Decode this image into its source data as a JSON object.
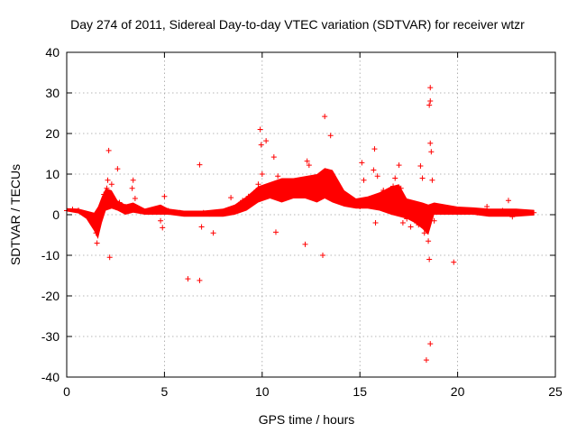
{
  "chart_data": {
    "type": "scatter",
    "title": "Day 274 of 2011, Sidereal Day-to-day VTEC variation (SDTVAR) for receiver wtzr",
    "xlabel": "GPS time / hours",
    "ylabel": "SDTVAR / TECUs",
    "xlim": [
      0,
      25
    ],
    "ylim": [
      -40,
      40
    ],
    "xticks": [
      0,
      5,
      10,
      15,
      20,
      25
    ],
    "yticks": [
      -40,
      -30,
      -20,
      -10,
      0,
      10,
      20,
      30,
      40
    ],
    "grid": true,
    "marker": "+",
    "series": [
      {
        "name": "SDTVAR",
        "color": "#ff0000",
        "points": [
          [
            0.0,
            1.0
          ],
          [
            0.3,
            1.3
          ],
          [
            0.6,
            1.1
          ],
          [
            0.9,
            0.3
          ],
          [
            1.2,
            -0.8
          ],
          [
            1.4,
            -1.5
          ],
          [
            1.5,
            -4.5
          ],
          [
            1.55,
            -7.0
          ],
          [
            1.7,
            1.0
          ],
          [
            1.9,
            5.0
          ],
          [
            2.05,
            6.5
          ],
          [
            2.1,
            8.5
          ],
          [
            2.15,
            15.8
          ],
          [
            2.2,
            -10.5
          ],
          [
            2.3,
            7.5
          ],
          [
            2.6,
            11.3
          ],
          [
            2.7,
            3.0
          ],
          [
            3.0,
            2.0
          ],
          [
            3.35,
            6.5
          ],
          [
            3.4,
            8.5
          ],
          [
            3.5,
            4.0
          ],
          [
            3.6,
            1.5
          ],
          [
            4.0,
            0.8
          ],
          [
            4.5,
            1.0
          ],
          [
            4.7,
            1.5
          ],
          [
            4.8,
            -1.5
          ],
          [
            4.9,
            -3.2
          ],
          [
            5.0,
            4.5
          ],
          [
            5.2,
            1.0
          ],
          [
            5.8,
            0.5
          ],
          [
            6.2,
            -15.8
          ],
          [
            6.8,
            -16.2
          ],
          [
            6.8,
            12.3
          ],
          [
            6.9,
            -3.0
          ],
          [
            7.0,
            0.5
          ],
          [
            7.3,
            0.2
          ],
          [
            7.5,
            -4.5
          ],
          [
            7.8,
            0.5
          ],
          [
            8.4,
            4.2
          ],
          [
            8.8,
            2.5
          ],
          [
            9.0,
            3.5
          ],
          [
            9.3,
            4.5
          ],
          [
            9.5,
            5.0
          ],
          [
            9.7,
            6.0
          ],
          [
            9.8,
            7.5
          ],
          [
            9.9,
            21.0
          ],
          [
            9.95,
            17.2
          ],
          [
            10.0,
            10.0
          ],
          [
            10.2,
            18.2
          ],
          [
            10.4,
            5.0
          ],
          [
            10.6,
            14.2
          ],
          [
            10.7,
            -4.3
          ],
          [
            10.8,
            9.5
          ],
          [
            11.0,
            8.0
          ],
          [
            11.2,
            7.0
          ],
          [
            11.5,
            7.5
          ],
          [
            11.7,
            6.5
          ],
          [
            12.0,
            7.0
          ],
          [
            12.2,
            -7.3
          ],
          [
            12.3,
            13.2
          ],
          [
            12.4,
            12.2
          ],
          [
            12.6,
            8.0
          ],
          [
            12.8,
            9.0
          ],
          [
            13.0,
            7.0
          ],
          [
            13.1,
            -10.0
          ],
          [
            13.2,
            24.2
          ],
          [
            13.3,
            10.5
          ],
          [
            13.5,
            19.5
          ],
          [
            13.6,
            8.0
          ],
          [
            14.0,
            4.5
          ],
          [
            14.5,
            3.0
          ],
          [
            15.0,
            2.0
          ],
          [
            15.1,
            12.8
          ],
          [
            15.2,
            8.5
          ],
          [
            15.5,
            4.0
          ],
          [
            15.7,
            11.0
          ],
          [
            15.75,
            16.2
          ],
          [
            15.8,
            -2.0
          ],
          [
            15.9,
            9.5
          ],
          [
            16.2,
            6.0
          ],
          [
            16.5,
            4.5
          ],
          [
            16.7,
            7.0
          ],
          [
            16.8,
            9.0
          ],
          [
            17.0,
            12.2
          ],
          [
            17.1,
            6.5
          ],
          [
            17.2,
            -2.0
          ],
          [
            17.4,
            -1.0
          ],
          [
            17.6,
            -3.0
          ],
          [
            17.8,
            -1.5
          ],
          [
            18.0,
            -2.5
          ],
          [
            18.1,
            12.0
          ],
          [
            18.2,
            9.0
          ],
          [
            18.3,
            -4.5
          ],
          [
            18.4,
            -35.8
          ],
          [
            18.5,
            -6.5
          ],
          [
            18.55,
            -11.0
          ],
          [
            18.6,
            31.3
          ],
          [
            18.6,
            28.0
          ],
          [
            18.55,
            27.0
          ],
          [
            18.6,
            17.6
          ],
          [
            18.65,
            15.5
          ],
          [
            18.7,
            8.5
          ],
          [
            18.8,
            -1.5
          ],
          [
            18.6,
            -31.8
          ],
          [
            19.0,
            1.2
          ],
          [
            19.5,
            1.0
          ],
          [
            19.8,
            -11.7
          ],
          [
            20.0,
            1.0
          ],
          [
            20.5,
            0.8
          ],
          [
            21.0,
            0.5
          ],
          [
            21.3,
            0.5
          ],
          [
            21.5,
            2.0
          ],
          [
            22.0,
            0.3
          ],
          [
            22.3,
            1.0
          ],
          [
            22.6,
            3.5
          ],
          [
            22.8,
            -0.5
          ],
          [
            23.0,
            0.5
          ],
          [
            23.5,
            0.5
          ],
          [
            23.9,
            0.5
          ]
        ],
        "dense_band": [
          [
            0.0,
            0.8,
            1.6
          ],
          [
            0.6,
            0.3,
            1.5
          ],
          [
            1.0,
            -1.0,
            1.0
          ],
          [
            1.4,
            -4.0,
            0.5
          ],
          [
            1.6,
            -6.0,
            2.0
          ],
          [
            1.8,
            -2.0,
            4.5
          ],
          [
            2.0,
            1.0,
            6.5
          ],
          [
            2.3,
            1.5,
            6.0
          ],
          [
            2.6,
            1.0,
            3.5
          ],
          [
            3.0,
            0.0,
            2.5
          ],
          [
            3.4,
            0.5,
            3.0
          ],
          [
            4.0,
            0.0,
            1.5
          ],
          [
            4.8,
            0.0,
            2.5
          ],
          [
            5.2,
            0.0,
            1.5
          ],
          [
            6.0,
            -0.5,
            1.0
          ],
          [
            7.0,
            -0.5,
            1.0
          ],
          [
            8.0,
            -0.5,
            1.5
          ],
          [
            8.6,
            0.0,
            2.5
          ],
          [
            9.2,
            1.0,
            4.5
          ],
          [
            9.8,
            3.0,
            7.0
          ],
          [
            10.4,
            4.0,
            8.0
          ],
          [
            11.0,
            3.0,
            9.0
          ],
          [
            11.6,
            4.0,
            9.0
          ],
          [
            12.2,
            4.0,
            9.5
          ],
          [
            12.8,
            3.0,
            10.0
          ],
          [
            13.2,
            4.0,
            11.5
          ],
          [
            13.6,
            3.0,
            11.0
          ],
          [
            14.2,
            2.0,
            6.0
          ],
          [
            14.8,
            1.5,
            4.0
          ],
          [
            15.4,
            1.5,
            4.5
          ],
          [
            16.0,
            1.0,
            5.5
          ],
          [
            16.6,
            0.0,
            7.0
          ],
          [
            17.0,
            -0.5,
            7.5
          ],
          [
            17.4,
            -1.0,
            4.0
          ],
          [
            17.8,
            -2.0,
            3.5
          ],
          [
            18.2,
            -3.5,
            3.0
          ],
          [
            18.5,
            -5.0,
            2.5
          ],
          [
            18.8,
            0.0,
            3.0
          ],
          [
            19.4,
            0.0,
            2.5
          ],
          [
            20.0,
            0.0,
            2.0
          ],
          [
            20.8,
            0.0,
            1.8
          ],
          [
            21.6,
            -0.5,
            1.5
          ],
          [
            22.4,
            -0.5,
            1.5
          ],
          [
            23.0,
            -0.5,
            1.5
          ],
          [
            23.9,
            -0.2,
            1.2
          ]
        ]
      }
    ]
  }
}
